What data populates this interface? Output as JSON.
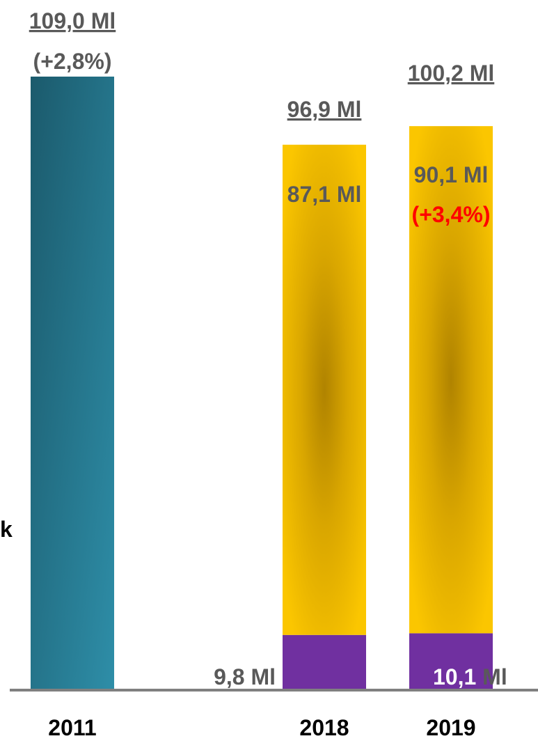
{
  "chart_data": {
    "type": "bar",
    "categories": [
      "2011",
      "2018",
      "2019"
    ],
    "series": [
      {
        "values": [
          109.0,
          null,
          null
        ],
        "color": "#2a7e96"
      },
      {
        "values": [
          null,
          9.8,
          10.1
        ],
        "color": "#7030a0"
      },
      {
        "values": [
          null,
          87.1,
          90.1
        ],
        "color": "#f5c000"
      }
    ],
    "totals": [
      109.0,
      96.9,
      100.2
    ],
    "ylim": [
      0,
      112
    ],
    "labels": {
      "total_2011": "109,0 Ml",
      "change_2011": "(+2,8%)",
      "total_2018": "96,9 Ml",
      "total_2019": "100,2 Ml",
      "upper_2018": "87,1 Ml",
      "upper_2019": "90,1 Ml",
      "change_2019": "(+3,4%)",
      "lower_2018": "9,8 Ml",
      "lower_2019_value": "10,1",
      "lower_2019_unit": " Ml"
    },
    "colors": {
      "text": "#595959",
      "change_red": "#ff0000",
      "lower_2019_value": "#ffffff",
      "axis": "#808080"
    }
  },
  "side_text": "k"
}
